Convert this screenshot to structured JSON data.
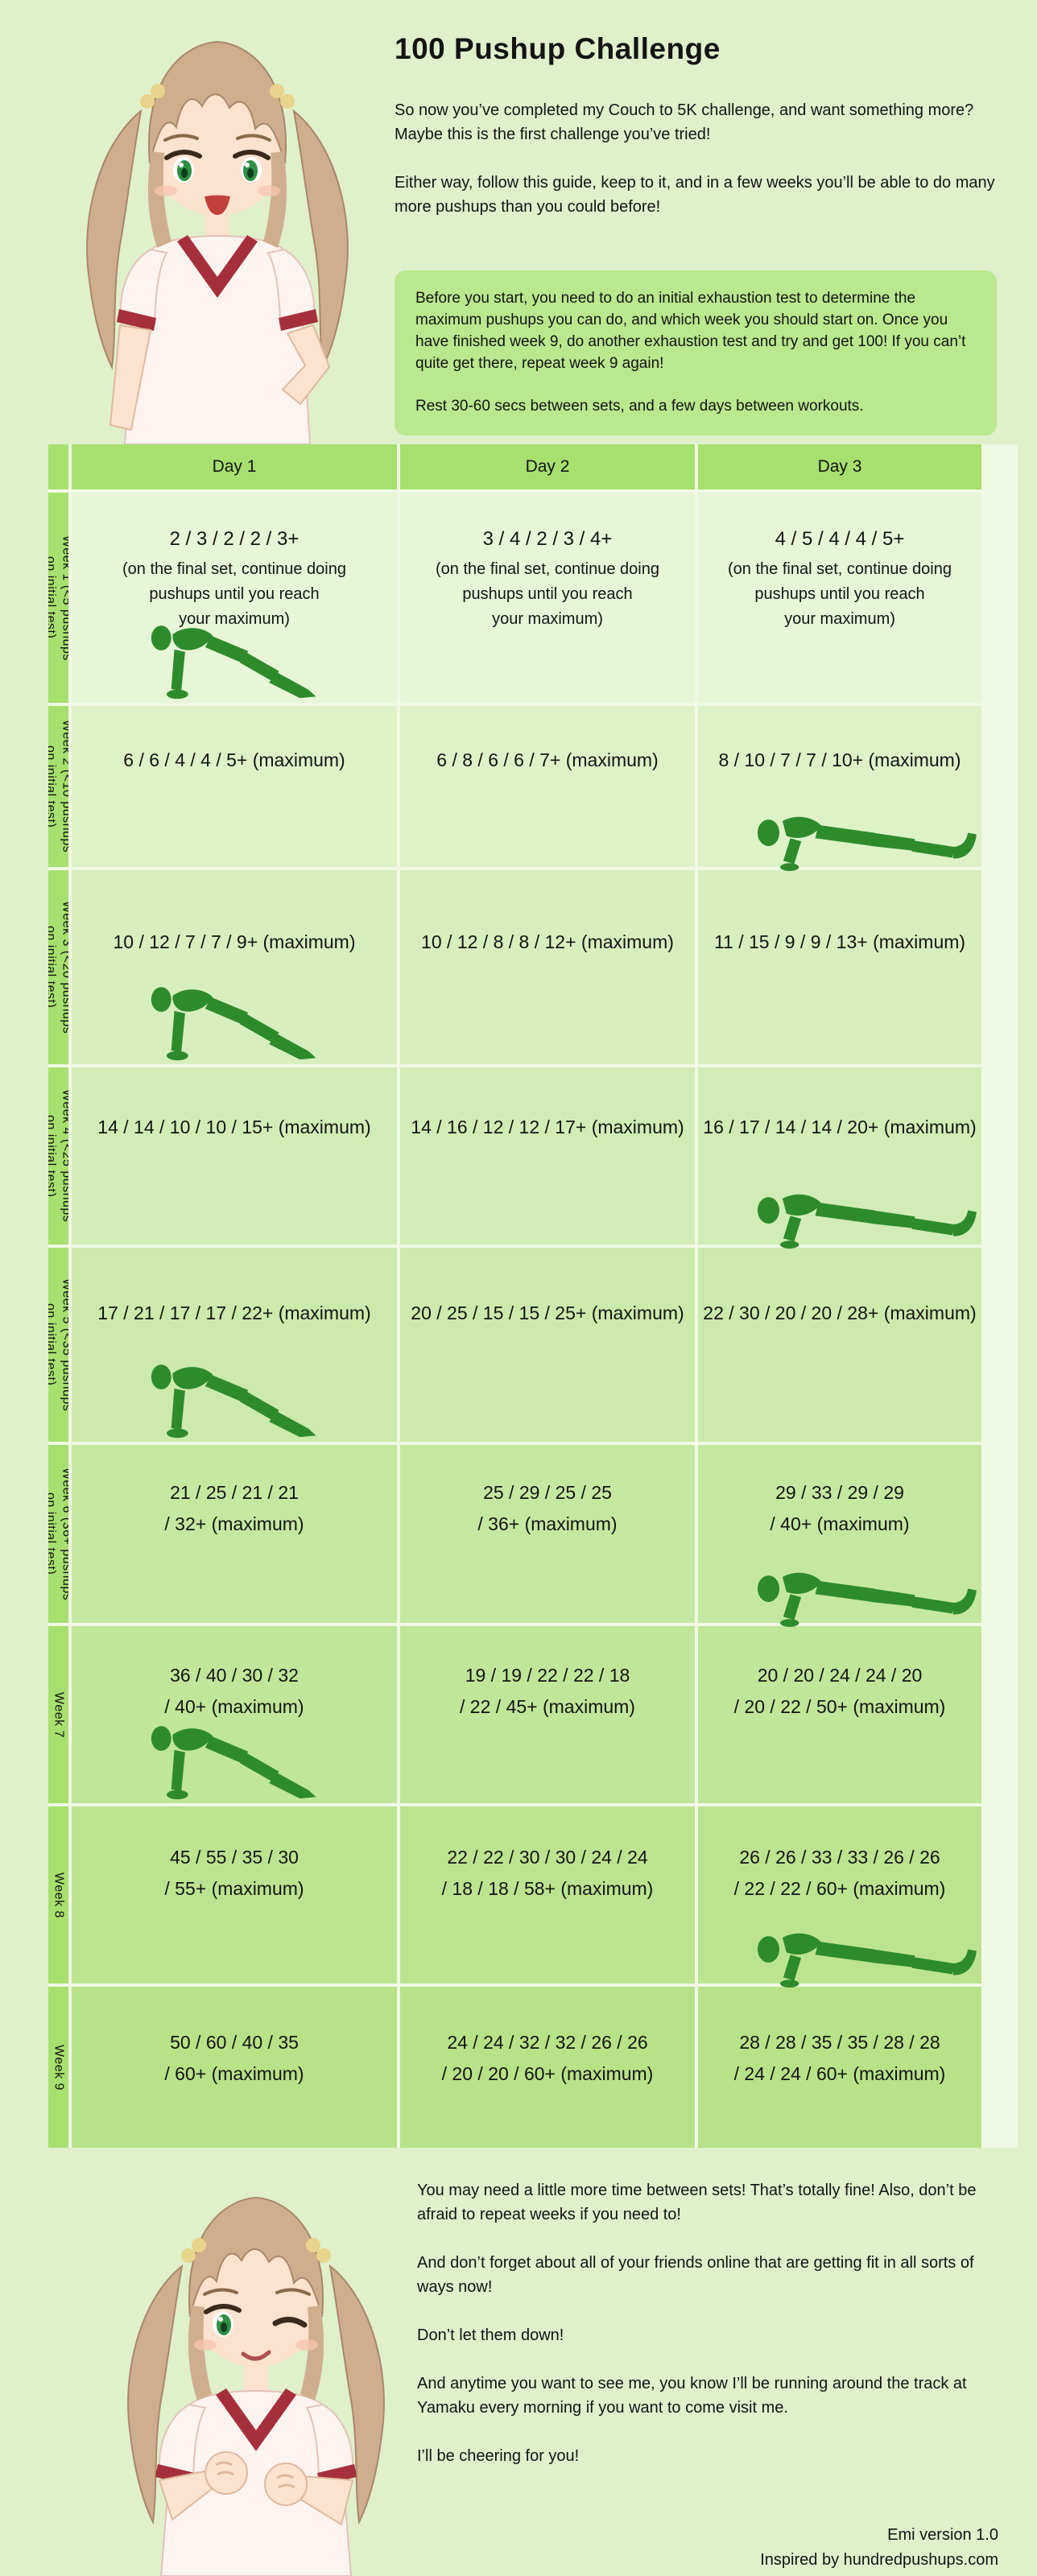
{
  "page": {
    "title": "100 Pushup Challenge"
  },
  "intro": [
    "So now you’ve completed my Couch to 5K challenge, and want something more?",
    "Maybe this is the first challenge you’ve tried!",
    "Either way, follow this guide, keep to it, and in a few weeks you’ll be able to do many more pushups than you could before!"
  ],
  "info_box": {
    "paragraph1": "Before you start, you need to do an initial exhaustion test to determine the maximum pushups you can do, and which week you should start on. Once you have finished week 9, do another exhaustion test and try and get 100! If you can’t quite get there, repeat week 9 again!",
    "paragraph2": "Rest 30-60 secs between sets, and a few days between workouts."
  },
  "table": {
    "day_headers": [
      "Day 1",
      "Day 2",
      "Day 3"
    ],
    "rows": [
      {
        "label_lines": [
          "Week 1 (<5 pushups",
          "on initial test)"
        ],
        "cells": [
          {
            "sets": "2 / 3 / 2 / 2 / 3+",
            "note_lines": [
              "(on the final set, continue doing",
              "pushups until you reach",
              "your maximum)"
            ]
          },
          {
            "sets": "3 / 4 / 2 / 3 / 4+",
            "note_lines": [
              "(on the final set, continue doing",
              "pushups until you reach",
              "your maximum)"
            ]
          },
          {
            "sets": "4 / 5 / 4 / 4 / 5+",
            "note_lines": [
              "(on the final set, continue doing",
              "pushups until you reach",
              "your maximum)"
            ]
          }
        ],
        "figure": {
          "day": 1,
          "pose": "up",
          "icon": "pushup-up-icon"
        }
      },
      {
        "label_lines": [
          "Week 2 (<10 pushups",
          "on initial test)"
        ],
        "cells": [
          {
            "lines": [
              "6 / 6 / 4 / 4 / 5+ (maximum)"
            ]
          },
          {
            "lines": [
              "6 / 8 / 6 / 6 / 7+ (maximum)"
            ]
          },
          {
            "lines": [
              "8 / 10 / 7 / 7 / 10+ (maximum)"
            ]
          }
        ],
        "figure": {
          "day": 3,
          "pose": "down",
          "icon": "pushup-down-icon"
        }
      },
      {
        "label_lines": [
          "Week 3 (<20 pushups",
          "on initial test)"
        ],
        "cells": [
          {
            "lines": [
              "10 / 12 / 7 / 7 / 9+ (maximum)"
            ]
          },
          {
            "lines": [
              "10 / 12 / 8 / 8 / 12+ (maximum)"
            ]
          },
          {
            "lines": [
              "11 / 15 / 9 / 9 / 13+ (maximum)"
            ]
          }
        ],
        "figure": {
          "day": 1,
          "pose": "up",
          "icon": "pushup-up-icon"
        }
      },
      {
        "label_lines": [
          "Week 4 (<25 pushups",
          "on initial test)"
        ],
        "cells": [
          {
            "lines": [
              "14 / 14 / 10 / 10 / 15+ (maximum)"
            ]
          },
          {
            "lines": [
              "14 / 16 / 12 / 12 / 17+ (maximum)"
            ]
          },
          {
            "lines": [
              "16 / 17 / 14 / 14 / 20+ (maximum)"
            ]
          }
        ],
        "figure": {
          "day": 3,
          "pose": "down",
          "icon": "pushup-down-icon"
        }
      },
      {
        "label_lines": [
          "Week 5 (<35 pushups",
          "on initial test)"
        ],
        "cells": [
          {
            "lines": [
              "17 / 21 / 17 / 17 / 22+ (maximum)"
            ]
          },
          {
            "lines": [
              "20 / 25 / 15 / 15 / 25+ (maximum)"
            ]
          },
          {
            "lines": [
              "22 / 30 / 20 / 20 / 28+ (maximum)"
            ]
          }
        ],
        "figure": {
          "day": 1,
          "pose": "up",
          "icon": "pushup-up-icon"
        }
      },
      {
        "label_lines": [
          "Week 6 (36+ pushups",
          "on initial test)"
        ],
        "cells": [
          {
            "lines": [
              "21 / 25 / 21 / 21",
              "/ 32+ (maximum)"
            ]
          },
          {
            "lines": [
              "25 / 29 / 25 / 25",
              "/ 36+ (maximum)"
            ]
          },
          {
            "lines": [
              "29 / 33 / 29 / 29",
              "/ 40+ (maximum)"
            ]
          }
        ],
        "figure": {
          "day": 3,
          "pose": "down",
          "icon": "pushup-down-icon"
        }
      },
      {
        "label_lines": [
          "Week 7"
        ],
        "cells": [
          {
            "lines": [
              "36 / 40 / 30 / 32",
              "/ 40+ (maximum)"
            ]
          },
          {
            "lines": [
              "19 / 19 / 22 / 22 / 18",
              "/ 22 / 45+ (maximum)"
            ]
          },
          {
            "lines": [
              "20 / 20 / 24 / 24 / 20",
              "/ 20 / 22 / 50+ (maximum)"
            ]
          }
        ],
        "figure": {
          "day": 1,
          "pose": "up",
          "icon": "pushup-up-icon"
        }
      },
      {
        "label_lines": [
          "Week 8"
        ],
        "cells": [
          {
            "lines": [
              "45 / 55 / 35 / 30",
              "/ 55+ (maximum)"
            ]
          },
          {
            "lines": [
              "22 / 22 / 30 / 30 / 24 / 24",
              "/ 18 / 18 / 58+ (maximum)"
            ]
          },
          {
            "lines": [
              "26 / 26 / 33 / 33 / 26 / 26",
              "/ 22 / 22 / 60+ (maximum)"
            ]
          }
        ],
        "figure": {
          "day": 3,
          "pose": "down",
          "icon": "pushup-down-icon"
        }
      },
      {
        "label_lines": [
          "Week 9"
        ],
        "cells": [
          {
            "lines": [
              "50 / 60 / 40 / 35",
              "/ 60+ (maximum)"
            ]
          },
          {
            "lines": [
              "24 / 24 / 32 / 32 / 26 / 26",
              "/ 20 / 20 / 60+ (maximum)"
            ]
          },
          {
            "lines": [
              "28 / 28 / 35 / 35 / 28 / 28",
              "/ 24 / 24 / 60+ (maximum)"
            ]
          }
        ]
      }
    ]
  },
  "outro": [
    "You may need a little more time between sets! That’s totally fine! Also, don’t be afraid to repeat weeks if you need to!",
    "And don’t forget about all of your friends online that are getting fit in all sorts of ways now!",
    "Don’t let them down!",
    "And anytime you want to see me, you know I’ll be running around the track at Yamaku every morning if you want to come visit me.",
    "I’ll be cheering for you!"
  ],
  "footer": {
    "line1": "Emi version 1.0",
    "line2": "Inspired by hundredpushups.com"
  },
  "icons": {
    "pushup_up": "pushup-up-icon",
    "pushup_down": "pushup-down-icon",
    "top_character": "anime-girl-standing-icon",
    "bottom_character": "anime-girl-cheering-icon"
  },
  "colors": {
    "page_bg": "#dff0cb",
    "info_box_bg": "#b9e88e",
    "header_bg": "#a7e06e",
    "separator": "#f0f9e4",
    "figure_green": "#2e8b2c",
    "text": "#141414",
    "row_bgs": [
      "#e7f6d7",
      "#def2c8",
      "#d7efbe",
      "#d1edb5",
      "#cbeaab",
      "#c5e8a1",
      "#c0e699",
      "#bce490",
      "#b7e287"
    ]
  }
}
